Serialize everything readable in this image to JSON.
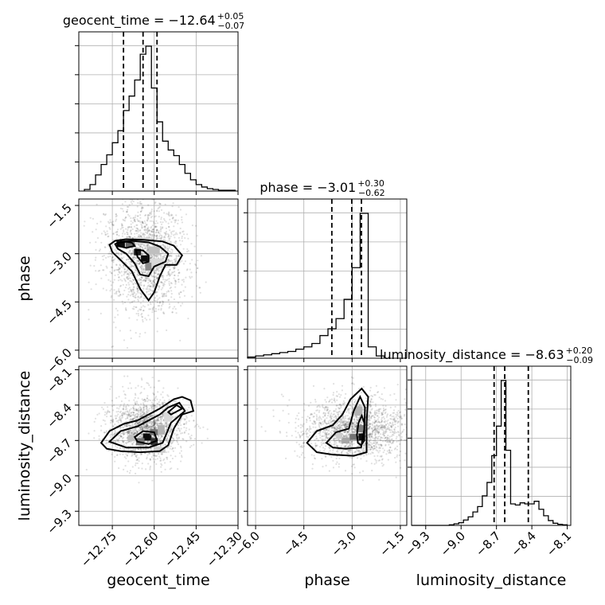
{
  "chart_data": {
    "type": "corner",
    "parameters": [
      "geocent_time",
      "phase",
      "luminosity_distance"
    ],
    "labels": {
      "geocent_time": "geocent_time",
      "phase": "phase",
      "luminosity_distance": "luminosity_distance"
    },
    "ranges": {
      "geocent_time": [
        -12.87,
        -12.3
      ],
      "phase": [
        -6.25,
        -1.3
      ],
      "luminosity_distance": [
        -9.42,
        -8.07
      ]
    },
    "ticks": {
      "geocent_time": [
        -12.75,
        -12.6,
        -12.45,
        -12.3
      ],
      "phase": [
        -6.0,
        -4.5,
        -3.0,
        -1.5
      ],
      "luminosity_distance": [
        -9.3,
        -9.0,
        -8.7,
        -8.4,
        -8.1
      ]
    },
    "tick_labels": {
      "geocent_time": [
        "−12.75",
        "−12.60",
        "−12.45",
        "−12.30"
      ],
      "phase": [
        "−6.0",
        "−4.5",
        "−3.0",
        "−1.5"
      ],
      "luminosity_distance": [
        "−9.3",
        "−9.0",
        "−8.7",
        "−8.4",
        "−8.1"
      ]
    },
    "titles": {
      "geocent_time": {
        "prefix": "geocent_time = −12.64",
        "plus": "+0.05",
        "minus": "−0.07"
      },
      "phase": {
        "prefix": "phase = −3.01",
        "plus": "+0.30",
        "minus": "−0.62"
      },
      "luminosity_distance": {
        "prefix": "luminosity_distance = −8.63",
        "plus": "+0.20",
        "minus": "−0.09"
      }
    },
    "quantiles": {
      "geocent_time": [
        -12.71,
        -12.64,
        -12.59
      ],
      "phase": [
        -3.63,
        -3.01,
        -2.71
      ],
      "luminosity_distance": [
        -8.72,
        -8.63,
        -8.43
      ]
    },
    "histograms": {
      "geocent_time": {
        "edges": [
          -12.85,
          -12.83,
          -12.81,
          -12.79,
          -12.77,
          -12.75,
          -12.73,
          -12.71,
          -12.69,
          -12.67,
          -12.65,
          -12.63,
          -12.61,
          -12.59,
          -12.57,
          -12.55,
          -12.53,
          -12.51,
          -12.49,
          -12.47,
          -12.45,
          -12.43,
          -12.41,
          -12.39,
          -12.37,
          -12.35,
          -12.33,
          -12.31
        ],
        "counts": [
          2,
          8,
          20,
          33,
          45,
          60,
          75,
          100,
          118,
          138,
          170,
          180,
          128,
          86,
          62,
          51,
          44,
          33,
          22,
          14,
          8,
          5,
          3,
          2,
          1,
          1,
          1
        ]
      },
      "phase": {
        "edges": [
          -6.25,
          -6.0,
          -5.75,
          -5.5,
          -5.25,
          -5.0,
          -4.75,
          -4.5,
          -4.25,
          -4.0,
          -3.75,
          -3.5,
          -3.25,
          -3.0,
          -2.75,
          -2.5,
          -2.25,
          -2.0
        ],
        "counts": [
          1,
          2,
          3,
          4,
          5,
          6,
          8,
          10,
          13,
          20,
          26,
          35,
          52,
          80,
          128,
          10,
          2
        ]
      },
      "luminosity_distance": {
        "edges": [
          -9.42,
          -9.38,
          -9.34,
          -9.3,
          -9.26,
          -9.22,
          -9.18,
          -9.14,
          -9.1,
          -9.06,
          -9.02,
          -8.98,
          -8.94,
          -8.9,
          -8.86,
          -8.82,
          -8.78,
          -8.74,
          -8.7,
          -8.66,
          -8.62,
          -8.58,
          -8.54,
          -8.5,
          -8.46,
          -8.42,
          -8.38,
          -8.34,
          -8.3,
          -8.26,
          -8.22,
          -8.18,
          -8.14,
          -8.1
        ],
        "counts": [
          0,
          0,
          0,
          0,
          0,
          0,
          0,
          0,
          1,
          3,
          5,
          10,
          16,
          25,
          35,
          55,
          80,
          130,
          185,
          270,
          140,
          40,
          38,
          42,
          40,
          40,
          45,
          30,
          18,
          9,
          4,
          2,
          1
        ]
      }
    },
    "pairs": [
      {
        "x": "geocent_time",
        "y": "phase",
        "sample_center": [
          -12.63,
          -3.1
        ],
        "sample_spread": [
          0.07,
          0.85
        ],
        "sample_count": 1800,
        "density_cells": [
          {
            "x": -12.72,
            "y": -2.7,
            "w": 0.03,
            "h": 0.18,
            "level": 0.95
          },
          {
            "x": -12.685,
            "y": -2.7,
            "w": 0.035,
            "h": 0.18,
            "level": 0.6
          },
          {
            "x": -12.66,
            "y": -2.95,
            "w": 0.025,
            "h": 0.2,
            "level": 0.9
          },
          {
            "x": -12.635,
            "y": -3.15,
            "w": 0.025,
            "h": 0.2,
            "level": 0.95
          },
          {
            "x": -12.62,
            "y": -3.4,
            "w": 0.025,
            "h": 0.25,
            "level": 0.45
          },
          {
            "x": -12.6,
            "y": -2.9,
            "w": 0.04,
            "h": 0.25,
            "level": 0.25
          },
          {
            "x": -12.64,
            "y": -2.6,
            "w": 0.06,
            "h": 0.2,
            "level": 0.15
          },
          {
            "x": -12.59,
            "y": -3.3,
            "w": 0.04,
            "h": 0.3,
            "level": 0.15
          }
        ],
        "contours": [
          [
            [
              -12.76,
              -2.72
            ],
            [
              -12.74,
              -2.6
            ],
            [
              -12.7,
              -2.55
            ],
            [
              -12.64,
              -2.57
            ],
            [
              -12.57,
              -2.62
            ],
            [
              -12.53,
              -2.75
            ],
            [
              -12.5,
              -3.05
            ],
            [
              -12.52,
              -3.35
            ],
            [
              -12.56,
              -3.35
            ],
            [
              -12.58,
              -3.7
            ],
            [
              -12.6,
              -4.2
            ],
            [
              -12.62,
              -4.45
            ],
            [
              -12.65,
              -4.1
            ],
            [
              -12.68,
              -3.55
            ],
            [
              -12.72,
              -3.2
            ],
            [
              -12.75,
              -2.95
            ],
            [
              -12.76,
              -2.72
            ]
          ],
          [
            [
              -12.74,
              -2.7
            ],
            [
              -12.72,
              -2.62
            ],
            [
              -12.68,
              -2.6
            ],
            [
              -12.62,
              -2.65
            ],
            [
              -12.58,
              -2.78
            ],
            [
              -12.55,
              -3.0
            ],
            [
              -12.56,
              -3.25
            ],
            [
              -12.6,
              -3.4
            ],
            [
              -12.62,
              -3.7
            ],
            [
              -12.65,
              -3.65
            ],
            [
              -12.67,
              -3.3
            ],
            [
              -12.7,
              -3.0
            ],
            [
              -12.73,
              -2.85
            ],
            [
              -12.74,
              -2.7
            ]
          ],
          [
            [
              -12.73,
              -2.66
            ],
            [
              -12.7,
              -2.63
            ],
            [
              -12.68,
              -2.66
            ],
            [
              -12.67,
              -2.76
            ],
            [
              -12.7,
              -2.82
            ],
            [
              -12.73,
              -2.76
            ],
            [
              -12.73,
              -2.66
            ]
          ],
          [
            [
              -12.665,
              -2.88
            ],
            [
              -12.64,
              -2.9
            ],
            [
              -12.62,
              -3.05
            ],
            [
              -12.62,
              -3.25
            ],
            [
              -12.64,
              -3.3
            ],
            [
              -12.66,
              -3.1
            ],
            [
              -12.665,
              -2.88
            ]
          ]
        ]
      },
      {
        "x": "geocent_time",
        "y": "luminosity_distance",
        "sample_center": [
          -12.63,
          -8.6
        ],
        "sample_spread": [
          0.065,
          0.13
        ],
        "sample_count": 1800,
        "density_cells": [
          {
            "x": -12.625,
            "y": -8.67,
            "w": 0.03,
            "h": 0.06,
            "level": 0.95
          },
          {
            "x": -12.6,
            "y": -8.71,
            "w": 0.025,
            "h": 0.06,
            "level": 0.8
          },
          {
            "x": -12.65,
            "y": -8.71,
            "w": 0.03,
            "h": 0.06,
            "level": 0.55
          },
          {
            "x": -12.6,
            "y": -8.63,
            "w": 0.03,
            "h": 0.05,
            "level": 0.55
          },
          {
            "x": -12.575,
            "y": -8.61,
            "w": 0.025,
            "h": 0.08,
            "level": 0.3
          },
          {
            "x": -12.68,
            "y": -8.68,
            "w": 0.03,
            "h": 0.05,
            "level": 0.25
          },
          {
            "x": -12.55,
            "y": -8.5,
            "w": 0.03,
            "h": 0.08,
            "level": 0.15
          },
          {
            "x": -12.58,
            "y": -8.78,
            "w": 0.04,
            "h": 0.05,
            "level": 0.2
          }
        ],
        "contours": [
          [
            [
              -12.79,
              -8.72
            ],
            [
              -12.76,
              -8.62
            ],
            [
              -12.71,
              -8.56
            ],
            [
              -12.66,
              -8.53
            ],
            [
              -12.62,
              -8.48
            ],
            [
              -12.58,
              -8.43
            ],
            [
              -12.53,
              -8.35
            ],
            [
              -12.5,
              -8.33
            ],
            [
              -12.47,
              -8.36
            ],
            [
              -12.46,
              -8.45
            ],
            [
              -12.5,
              -8.48
            ],
            [
              -12.53,
              -8.6
            ],
            [
              -12.55,
              -8.74
            ],
            [
              -12.58,
              -8.79
            ],
            [
              -12.65,
              -8.8
            ],
            [
              -12.72,
              -8.79
            ],
            [
              -12.77,
              -8.77
            ],
            [
              -12.79,
              -8.72
            ]
          ],
          [
            [
              -12.76,
              -8.71
            ],
            [
              -12.72,
              -8.62
            ],
            [
              -12.66,
              -8.58
            ],
            [
              -12.62,
              -8.53
            ],
            [
              -12.58,
              -8.48
            ],
            [
              -12.55,
              -8.42
            ],
            [
              -12.51,
              -8.38
            ],
            [
              -12.49,
              -8.45
            ],
            [
              -12.54,
              -8.55
            ],
            [
              -12.57,
              -8.72
            ],
            [
              -12.62,
              -8.76
            ],
            [
              -12.7,
              -8.76
            ],
            [
              -12.76,
              -8.71
            ]
          ],
          [
            [
              -12.67,
              -8.67
            ],
            [
              -12.64,
              -8.62
            ],
            [
              -12.6,
              -8.63
            ],
            [
              -12.59,
              -8.7
            ],
            [
              -12.62,
              -8.73
            ],
            [
              -12.66,
              -8.71
            ],
            [
              -12.67,
              -8.67
            ]
          ],
          [
            [
              -12.55,
              -8.46
            ],
            [
              -12.52,
              -8.4
            ],
            [
              -12.5,
              -8.43
            ],
            [
              -12.54,
              -8.48
            ],
            [
              -12.55,
              -8.46
            ]
          ]
        ]
      },
      {
        "x": "phase",
        "y": "luminosity_distance",
        "sample_center": [
          -2.9,
          -8.6
        ],
        "sample_spread": [
          0.85,
          0.13
        ],
        "sample_count": 1800,
        "density_cells": [
          {
            "x": -2.7,
            "y": -8.67,
            "w": 0.2,
            "h": 0.06,
            "level": 0.95
          },
          {
            "x": -2.95,
            "y": -8.67,
            "w": 0.25,
            "h": 0.05,
            "level": 0.55
          },
          {
            "x": -3.2,
            "y": -8.7,
            "w": 0.25,
            "h": 0.05,
            "level": 0.35
          },
          {
            "x": -2.75,
            "y": -8.6,
            "w": 0.25,
            "h": 0.06,
            "level": 0.5
          },
          {
            "x": -2.8,
            "y": -8.45,
            "w": 0.25,
            "h": 0.08,
            "level": 0.3
          },
          {
            "x": -3.4,
            "y": -8.66,
            "w": 0.2,
            "h": 0.05,
            "level": 0.2
          }
        ],
        "contours": [
          [
            [
              -4.4,
              -8.72
            ],
            [
              -4.1,
              -8.62
            ],
            [
              -3.6,
              -8.57
            ],
            [
              -3.3,
              -8.48
            ],
            [
              -3.05,
              -8.35
            ],
            [
              -2.7,
              -8.26
            ],
            [
              -2.5,
              -8.33
            ],
            [
              -2.55,
              -8.55
            ],
            [
              -2.55,
              -8.8
            ],
            [
              -2.95,
              -8.83
            ],
            [
              -3.6,
              -8.82
            ],
            [
              -4.1,
              -8.8
            ],
            [
              -4.4,
              -8.72
            ]
          ],
          [
            [
              -3.8,
              -8.72
            ],
            [
              -3.5,
              -8.63
            ],
            [
              -3.1,
              -8.6
            ],
            [
              -2.95,
              -8.45
            ],
            [
              -2.75,
              -8.33
            ],
            [
              -2.6,
              -8.42
            ],
            [
              -2.62,
              -8.6
            ],
            [
              -2.72,
              -8.76
            ],
            [
              -3.2,
              -8.77
            ],
            [
              -3.6,
              -8.76
            ],
            [
              -3.8,
              -8.72
            ]
          ],
          [
            [
              -2.85,
              -8.65
            ],
            [
              -2.8,
              -8.55
            ],
            [
              -2.7,
              -8.49
            ],
            [
              -2.62,
              -8.55
            ],
            [
              -2.62,
              -8.7
            ],
            [
              -2.72,
              -8.74
            ],
            [
              -2.82,
              -8.72
            ],
            [
              -2.85,
              -8.65
            ]
          ]
        ]
      }
    ]
  }
}
